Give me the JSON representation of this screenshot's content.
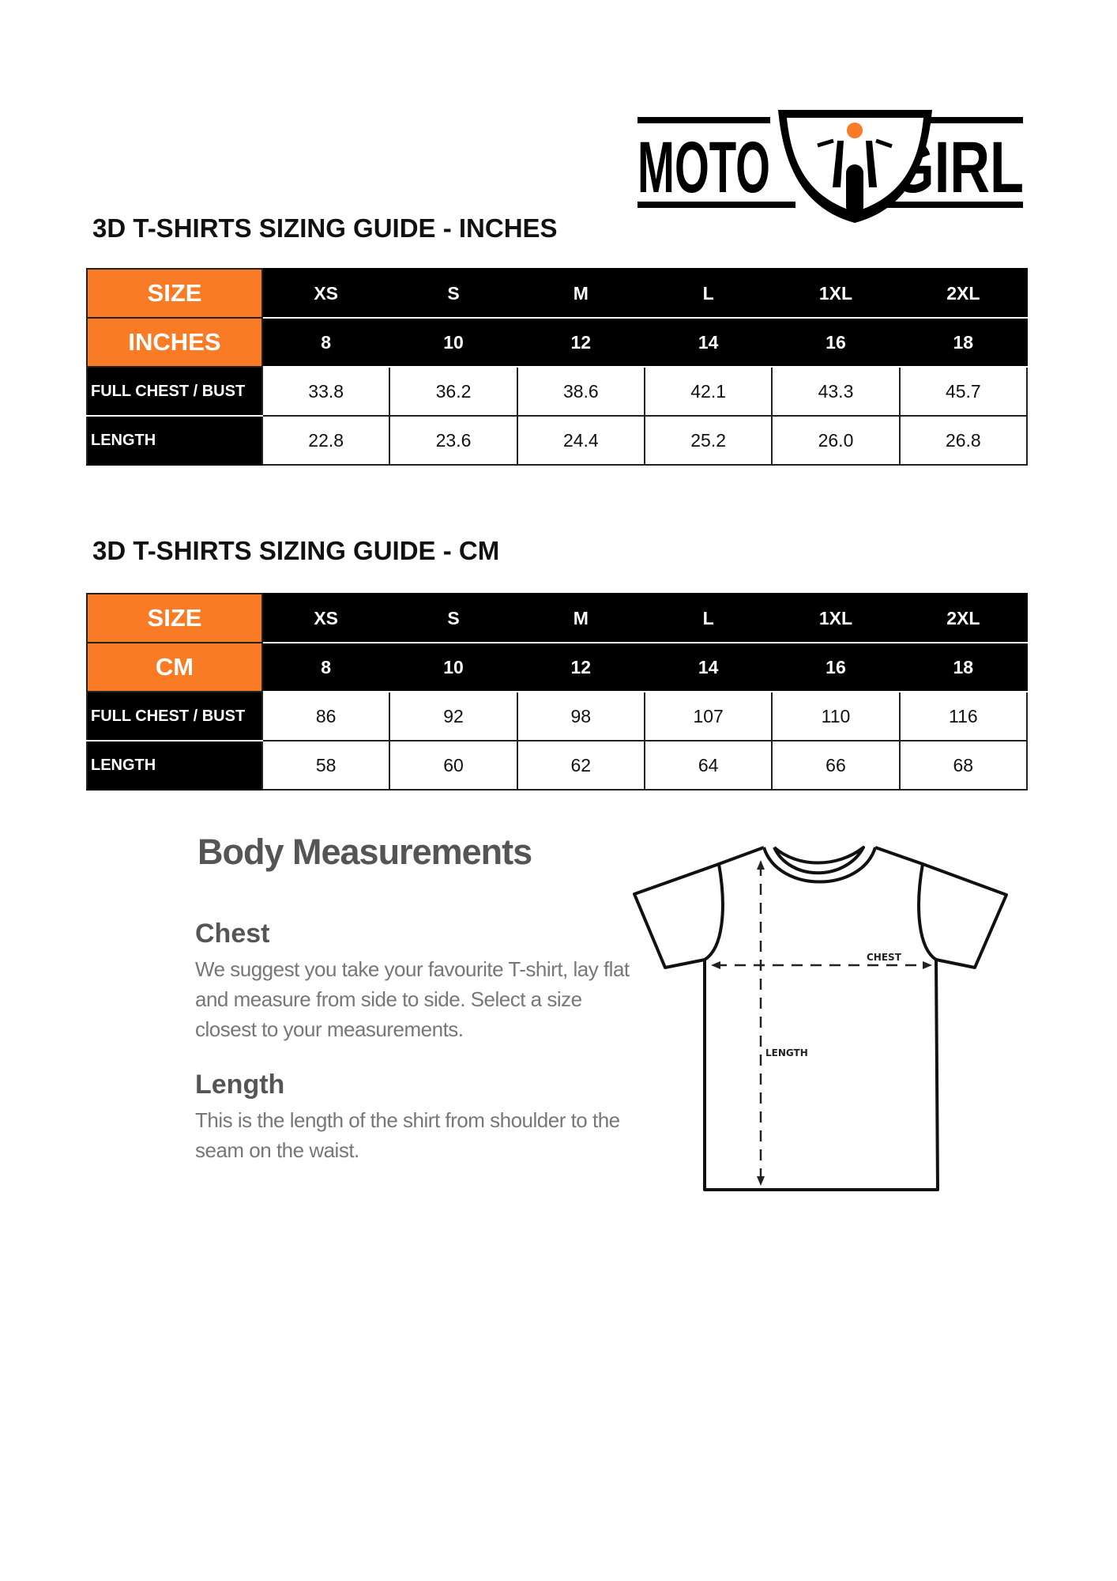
{
  "brand": {
    "logo_text_left": "MOTO",
    "logo_text_right": "GIRL",
    "accent": "#f97b25"
  },
  "tables": [
    {
      "title": "3D T-SHIRTS SIZING GUIDE - INCHES",
      "header_label": "SIZE",
      "unit_label": "INCHES",
      "sizes": [
        "XS",
        "S",
        "M",
        "L",
        "1XL",
        "2XL"
      ],
      "numeric_sizes": [
        "8",
        "10",
        "12",
        "14",
        "16",
        "18"
      ],
      "rows": [
        {
          "label": "FULL CHEST / BUST",
          "values": [
            "33.8",
            "36.2",
            "38.6",
            "42.1",
            "43.3",
            "45.7"
          ]
        },
        {
          "label": "LENGTH",
          "values": [
            "22.8",
            "23.6",
            "24.4",
            "25.2",
            "26.0",
            "26.8"
          ]
        }
      ]
    },
    {
      "title": "3D T-SHIRTS SIZING GUIDE - CM",
      "header_label": "SIZE",
      "unit_label": "CM",
      "sizes": [
        "XS",
        "S",
        "M",
        "L",
        "1XL",
        "2XL"
      ],
      "numeric_sizes": [
        "8",
        "10",
        "12",
        "14",
        "16",
        "18"
      ],
      "rows": [
        {
          "label": "FULL CHEST / BUST",
          "values": [
            "86",
            "92",
            "98",
            "107",
            "110",
            "116"
          ]
        },
        {
          "label": "LENGTH",
          "values": [
            "58",
            "60",
            "62",
            "64",
            "66",
            "68"
          ]
        }
      ]
    }
  ],
  "body": {
    "heading": "Body Measurements",
    "chest_heading": "Chest",
    "chest_lines": [
      "We suggest you take your favourite T-shirt, lay flat",
      "and measure from side to side. Select a size",
      "closest to your measurements."
    ],
    "length_heading": "Length",
    "length_lines": [
      "This is the length of the shirt from shoulder to the",
      "seam on the waist."
    ],
    "diagram_chest": "CHEST",
    "diagram_length": "LENGTH"
  }
}
